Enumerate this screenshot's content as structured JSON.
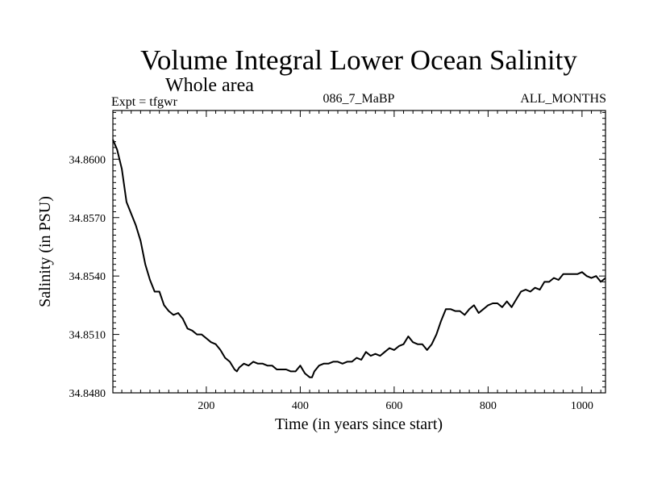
{
  "chart_data": {
    "type": "line",
    "title": "Volume Integral Lower Ocean Salinity",
    "subtitle": "Whole area",
    "expt_label": "Expt = tfgwr",
    "run_label": "086_7_MaBP",
    "period_label": "ALL_MONTHS",
    "xlabel": "Time (in years since start)",
    "ylabel": "Salinity (in PSU)",
    "xlim": [
      1,
      1050
    ],
    "ylim": [
      34.848,
      34.8625
    ],
    "xticks": [
      200,
      400,
      600,
      800,
      1000
    ],
    "xtick_labels": [
      "200",
      "400",
      "600",
      "800",
      "1000"
    ],
    "yticks": [
      34.848,
      34.851,
      34.854,
      34.857,
      34.86
    ],
    "ytick_labels": [
      "34.8480",
      "34.8510",
      "34.8540",
      "34.8570",
      "34.8600"
    ],
    "grid": false,
    "series": [
      {
        "name": "Salinity",
        "x": [
          1,
          10,
          20,
          30,
          40,
          50,
          60,
          70,
          80,
          90,
          100,
          110,
          120,
          130,
          140,
          150,
          160,
          170,
          180,
          190,
          200,
          210,
          220,
          230,
          240,
          250,
          260,
          265,
          270,
          280,
          290,
          300,
          310,
          320,
          330,
          340,
          350,
          360,
          370,
          380,
          390,
          400,
          410,
          420,
          425,
          430,
          440,
          450,
          460,
          470,
          480,
          490,
          500,
          510,
          520,
          530,
          540,
          550,
          560,
          570,
          580,
          590,
          600,
          610,
          620,
          630,
          640,
          650,
          660,
          670,
          680,
          690,
          700,
          710,
          720,
          730,
          740,
          750,
          760,
          770,
          780,
          790,
          800,
          810,
          820,
          830,
          840,
          850,
          860,
          870,
          880,
          890,
          900,
          910,
          920,
          930,
          940,
          950,
          960,
          970,
          980,
          990,
          1000,
          1010,
          1020,
          1030,
          1040,
          1050
        ],
        "y": [
          34.861,
          34.8605,
          34.8595,
          34.8578,
          34.8572,
          34.8566,
          34.8558,
          34.8546,
          34.8538,
          34.8532,
          34.8532,
          34.8525,
          34.8522,
          34.852,
          34.8521,
          34.8518,
          34.8513,
          34.8512,
          34.851,
          34.851,
          34.8508,
          34.8506,
          34.8505,
          34.8502,
          34.8498,
          34.8496,
          34.8492,
          34.8491,
          34.8493,
          34.8495,
          34.8494,
          34.8496,
          34.8495,
          34.8495,
          34.8494,
          34.8494,
          34.8492,
          34.8492,
          34.8492,
          34.8491,
          34.8491,
          34.8494,
          34.849,
          34.8488,
          34.8488,
          34.8491,
          34.8494,
          34.8495,
          34.8495,
          34.8496,
          34.8496,
          34.8495,
          34.8496,
          34.8496,
          34.8498,
          34.8497,
          34.8501,
          34.8499,
          34.85,
          34.8499,
          34.8501,
          34.8503,
          34.8502,
          34.8504,
          34.8505,
          34.8509,
          34.8506,
          34.8505,
          34.8505,
          34.8502,
          34.8505,
          34.851,
          34.8517,
          34.8523,
          34.8523,
          34.8522,
          34.8522,
          34.852,
          34.8523,
          34.8525,
          34.8521,
          34.8523,
          34.8525,
          34.8526,
          34.8526,
          34.8524,
          34.8527,
          34.8524,
          34.8528,
          34.8532,
          34.8533,
          34.8532,
          34.8534,
          34.8533,
          34.8537,
          34.8537,
          34.8539,
          34.8538,
          34.8541,
          34.8541,
          34.8541,
          34.8541,
          34.8542,
          34.854,
          34.8539,
          34.854,
          34.8537,
          34.8539
        ]
      }
    ]
  },
  "colors": {
    "line": "#000000",
    "frame": "#000000",
    "background": "#ffffff"
  }
}
